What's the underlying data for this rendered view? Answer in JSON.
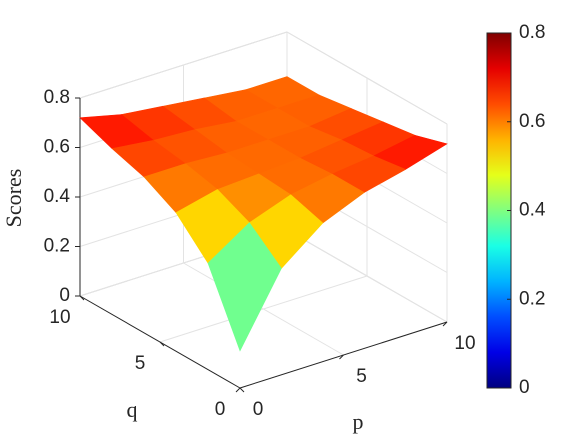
{
  "chart_data": {
    "type": "surface",
    "xlabel": "p",
    "ylabel": "q",
    "zlabel": "Scores",
    "x": [
      0,
      2,
      4,
      6,
      8,
      10
    ],
    "y": [
      0,
      2,
      4,
      6,
      8,
      10
    ],
    "z": [
      [
        0.15,
        0.43,
        0.56,
        0.63,
        0.67,
        0.72
      ],
      [
        0.43,
        0.54,
        0.6,
        0.63,
        0.65,
        0.68
      ],
      [
        0.56,
        0.6,
        0.61,
        0.62,
        0.64,
        0.66
      ],
      [
        0.63,
        0.63,
        0.62,
        0.62,
        0.62,
        0.64
      ],
      [
        0.67,
        0.65,
        0.64,
        0.62,
        0.62,
        0.62
      ],
      [
        0.72,
        0.68,
        0.66,
        0.64,
        0.62,
        0.62
      ]
    ],
    "xlim": [
      0,
      10
    ],
    "ylim": [
      0,
      10
    ],
    "zlim": [
      0,
      0.8
    ],
    "xticks": [
      0,
      5,
      10
    ],
    "yticks": [
      0,
      5,
      10
    ],
    "zticks": [
      0,
      0.2,
      0.4,
      0.6,
      0.8
    ],
    "grid": true,
    "colormap": "jet",
    "colorbar": {
      "clim": [
        0,
        0.8
      ],
      "ticks": [
        0,
        0.2,
        0.4,
        0.6,
        0.8
      ]
    }
  }
}
